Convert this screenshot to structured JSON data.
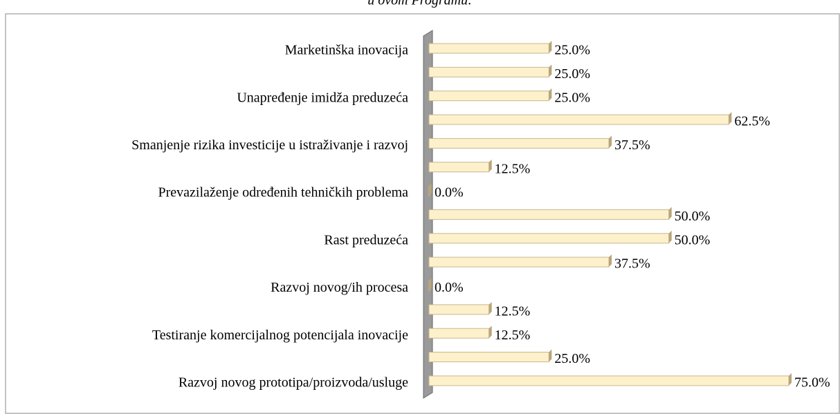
{
  "chart_data": {
    "type": "bar",
    "orientation": "horizontal",
    "title": "u ovom Programu:",
    "categories": [
      "Marketinška inovacija",
      null,
      "Unapređenje imidža preduzeća",
      null,
      "Smanjenje rizika investicije u istraživanje i razvoj",
      null,
      "Prevazilaženje određenih tehničkih problema",
      null,
      "Rast preduzeća",
      null,
      "Razvoj novog/ih procesa",
      null,
      "Testiranje komercijalnog potencijala inovacije",
      null,
      "Razvoj novog prototipa/proizvoda/usluge"
    ],
    "values": [
      25.0,
      25.0,
      25.0,
      62.5,
      37.5,
      12.5,
      0.0,
      50.0,
      50.0,
      37.5,
      0.0,
      12.5,
      12.5,
      25.0,
      75.0
    ],
    "value_labels": [
      "25.0%",
      "25.0%",
      "25.0%",
      "62.5%",
      "37.5%",
      "12.5%",
      "0.0%",
      "50.0%",
      "50.0%",
      "37.5%",
      "0.0%",
      "12.5%",
      "12.5%",
      "25.0%",
      "75.0%"
    ],
    "color": "#fdf1cc",
    "xlim": [
      0,
      75
    ]
  }
}
